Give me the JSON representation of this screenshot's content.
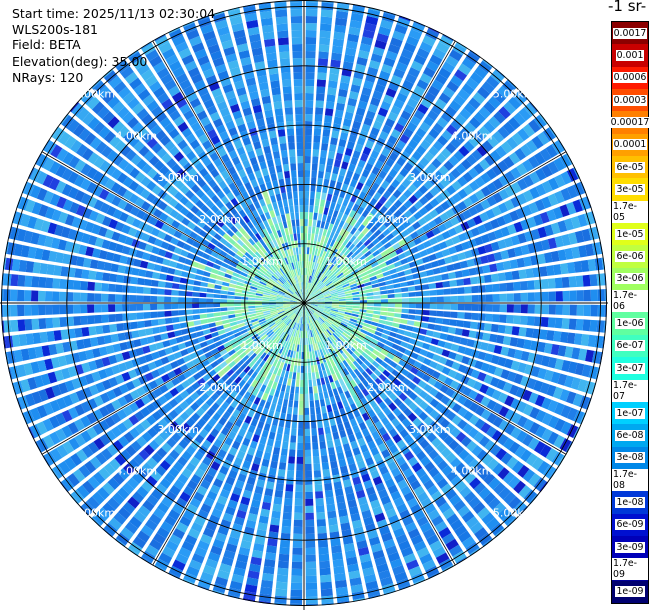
{
  "info": {
    "start_time": "Start time: 2025/11/13 02:30:04",
    "instrument": "WLS200s-181",
    "field": "Field: BETA",
    "elevation": "Elevation(deg): 35.00",
    "nrays": "NRays: 120"
  },
  "units_label": "-1 sr-",
  "ring_labels": [
    "1.00km",
    "2.00km",
    "3.00km",
    "4.00km",
    "5.00km"
  ],
  "colorbar": {
    "ticks": [
      "0.0017",
      "0.001",
      "0.0006",
      "0.0003",
      "0.00017",
      "0.0001",
      "6e-05",
      "3e-05",
      "1.7e-05",
      "1e-05",
      "6e-06",
      "3e-06",
      "1.7e-06",
      "1e-06",
      "6e-07",
      "3e-07",
      "1.7e-07",
      "1e-07",
      "6e-08",
      "3e-08",
      "1.7e-08",
      "1e-08",
      "6e-09",
      "3e-09",
      "1.7e-09",
      "1e-09"
    ],
    "colors": [
      "#8b0000",
      "#c80000",
      "#ff1a00",
      "#ff4d00",
      "#ff8000",
      "#ffa000",
      "#ffc000",
      "#ffdd00",
      "#f5f500",
      "#e0ff1a",
      "#c0ff40",
      "#a0ff60",
      "#80ff80",
      "#60ffa0",
      "#40ffc0",
      "#20ffe0",
      "#10f0f0",
      "#00d0ff",
      "#00a8f0",
      "#0088e8",
      "#0060e0",
      "#0038d8",
      "#0010d0",
      "#0000b8",
      "#000098",
      "#000070"
    ]
  },
  "palette": {
    "far": [
      "#1f8ef0",
      "#2a9bf5",
      "#1f7ee8",
      "#36a8f2",
      "#1a6fe0",
      "#40b5f0",
      "#1878e6"
    ],
    "near": [
      "#7ef0b0",
      "#6ee8c8",
      "#9bf59b",
      "#5fe0d8",
      "#aef0a0",
      "#7ad8f0"
    ],
    "speckle": [
      "#1020c8",
      "#0a2ad8",
      "#2040e0"
    ],
    "grid": "#000000",
    "ray_gap": "#ffffff"
  },
  "scan": {
    "rays": 120,
    "max_range_km": 5.5,
    "near_field_km": 1.4
  }
}
